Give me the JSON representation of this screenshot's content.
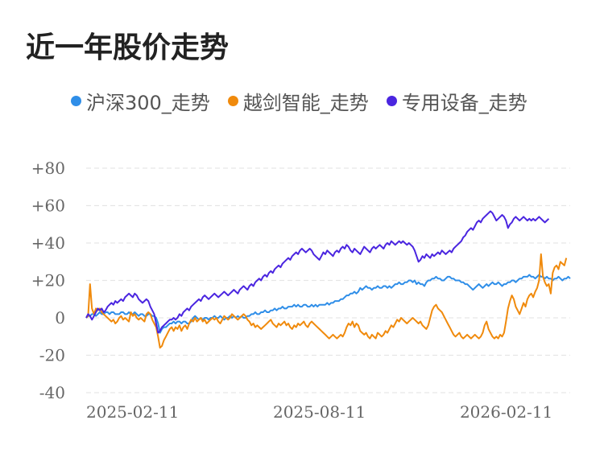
{
  "title": "近一年股价走势",
  "chart_data": {
    "type": "line",
    "ylim": [
      -40,
      80
    ],
    "y_ticks": [
      "+80",
      "+60",
      "+40",
      "+20",
      "0",
      "-20",
      "-40"
    ],
    "y_tick_values": [
      80,
      60,
      40,
      20,
      0,
      -20,
      -40
    ],
    "x_tick_labels": [
      "2025-02-11",
      "2025-08-11",
      "2026-02-11"
    ],
    "x_tick_index": [
      0,
      120,
      240
    ],
    "grid": true,
    "legend_position": "top",
    "series": [
      {
        "name": "沪深300_走势",
        "color": "#2f8ee8",
        "values": [
          0,
          1,
          1,
          2,
          2,
          1,
          2,
          3,
          2,
          2,
          3,
          3,
          2,
          3,
          3,
          2,
          2,
          2,
          3,
          3,
          2,
          2,
          3,
          2,
          2,
          3,
          2,
          1,
          2,
          2,
          1,
          1,
          2,
          2,
          1,
          1,
          0,
          -3,
          -8,
          -6,
          -5,
          -5,
          -4,
          -3,
          -3,
          -2,
          -3,
          -2,
          -2,
          -3,
          -2,
          -2,
          -3,
          -3,
          -2,
          0,
          1,
          0,
          -1,
          0,
          -1,
          0,
          0,
          -1,
          0,
          0,
          1,
          0,
          0,
          1,
          0,
          -1,
          0,
          0,
          1,
          0,
          1,
          0,
          1,
          0,
          1,
          0,
          0,
          1,
          1,
          2,
          2,
          3,
          2,
          2,
          3,
          3,
          4,
          3,
          3,
          4,
          4,
          5,
          4,
          5,
          5,
          6,
          5,
          5,
          6,
          6,
          6,
          7,
          6,
          7,
          6,
          6,
          7,
          7,
          6,
          6,
          7,
          6,
          7,
          6,
          7,
          7,
          7,
          7,
          8,
          7,
          8,
          8,
          9,
          9,
          9,
          10,
          10,
          11,
          12,
          12,
          13,
          13,
          14,
          13,
          14,
          16,
          15,
          16,
          17,
          16,
          16,
          15,
          16,
          16,
          17,
          16,
          16,
          17,
          17,
          16,
          17,
          16,
          17,
          18,
          18,
          19,
          18,
          18,
          19,
          19,
          20,
          20,
          19,
          20,
          18,
          19,
          18,
          18,
          17,
          19,
          20,
          20,
          21,
          21,
          22,
          21,
          21,
          20,
          20,
          21,
          22,
          22,
          21,
          21,
          20,
          20,
          20,
          19,
          19,
          18,
          18,
          17,
          16,
          15,
          16,
          17,
          18,
          17,
          16,
          17,
          18,
          17,
          18,
          19,
          18,
          18,
          19,
          18,
          17,
          18,
          18,
          19,
          19,
          20,
          20,
          19,
          20,
          21,
          21,
          22,
          22,
          22,
          23,
          22,
          22,
          21,
          22,
          23,
          22,
          22,
          21,
          22,
          21,
          21,
          20,
          21,
          21,
          22,
          21,
          20,
          21,
          21,
          22,
          21
        ]
      },
      {
        "name": "越剑智能_走势",
        "color": "#f08a0c",
        "values": [
          0,
          1,
          18,
          5,
          2,
          5,
          4,
          5,
          3,
          2,
          1,
          0,
          -1,
          -2,
          -1,
          -3,
          -2,
          0,
          1,
          -1,
          0,
          -1,
          -2,
          3,
          1,
          2,
          0,
          -1,
          0,
          -1,
          -2,
          2,
          3,
          2,
          -1,
          -3,
          -5,
          -10,
          -16,
          -15,
          -12,
          -10,
          -8,
          -6,
          -5,
          -7,
          -5,
          -6,
          -4,
          -7,
          -5,
          -4,
          -6,
          -3,
          -1,
          -2,
          0,
          -2,
          -1,
          0,
          -2,
          -1,
          -3,
          -2,
          -1,
          0,
          -1,
          0,
          -2,
          -3,
          -1,
          1,
          0,
          -1,
          0,
          2,
          1,
          0,
          -1,
          0,
          1,
          2,
          1,
          -1,
          -2,
          -4,
          -3,
          -5,
          -4,
          -5,
          -6,
          -5,
          -4,
          -3,
          -2,
          -1,
          -3,
          -4,
          -5,
          -3,
          -4,
          -3,
          -2,
          -4,
          -3,
          -5,
          -6,
          -4,
          -5,
          -3,
          -4,
          -3,
          -2,
          -4,
          -5,
          -3,
          -2,
          -3,
          -4,
          -5,
          -6,
          -7,
          -8,
          -9,
          -10,
          -11,
          -10,
          -9,
          -10,
          -11,
          -10,
          -9,
          -10,
          -8,
          -5,
          -3,
          -4,
          -2,
          -5,
          -3,
          -4,
          -7,
          -8,
          -9,
          -8,
          -10,
          -11,
          -9,
          -10,
          -11,
          -8,
          -9,
          -10,
          -9,
          -7,
          -8,
          -6,
          -4,
          -5,
          -3,
          -1,
          -2,
          0,
          -1,
          -2,
          -3,
          -2,
          -1,
          0,
          -1,
          -2,
          -3,
          -2,
          -4,
          -5,
          -6,
          -4,
          0,
          4,
          6,
          7,
          5,
          4,
          3,
          1,
          -1,
          -3,
          -5,
          -7,
          -9,
          -10,
          -9,
          -8,
          -10,
          -11,
          -10,
          -9,
          -10,
          -11,
          -10,
          -9,
          -10,
          -11,
          -10,
          -8,
          -4,
          -2,
          -6,
          -8,
          -10,
          -11,
          -10,
          -11,
          -9,
          -10,
          -8,
          -2,
          5,
          9,
          12,
          10,
          6,
          4,
          2,
          5,
          8,
          6,
          10,
          12,
          13,
          11,
          14,
          16,
          20,
          34,
          22,
          19,
          17,
          18,
          13,
          24,
          27,
          28,
          26,
          30,
          29,
          28,
          32
        ]
      },
      {
        "name": "专用设备_走势",
        "color": "#4a25e0",
        "values": [
          0,
          2,
          1,
          -1,
          1,
          3,
          5,
          4,
          5,
          3,
          4,
          6,
          7,
          8,
          7,
          9,
          8,
          9,
          10,
          9,
          11,
          12,
          13,
          12,
          11,
          13,
          12,
          10,
          9,
          8,
          9,
          10,
          9,
          6,
          4,
          2,
          -3,
          -8,
          -7,
          -5,
          -4,
          -3,
          -2,
          -1,
          -1,
          0,
          -1,
          0,
          2,
          1,
          3,
          4,
          5,
          4,
          6,
          7,
          8,
          9,
          10,
          9,
          11,
          12,
          11,
          10,
          11,
          12,
          13,
          12,
          11,
          12,
          13,
          14,
          13,
          12,
          13,
          14,
          15,
          14,
          13,
          15,
          16,
          17,
          16,
          15,
          17,
          18,
          17,
          19,
          20,
          21,
          20,
          22,
          23,
          22,
          24,
          25,
          24,
          26,
          27,
          28,
          27,
          29,
          30,
          31,
          32,
          31,
          33,
          34,
          35,
          34,
          36,
          37,
          36,
          35,
          36,
          37,
          36,
          34,
          33,
          32,
          31,
          33,
          35,
          34,
          36,
          35,
          34,
          33,
          35,
          36,
          35,
          37,
          38,
          37,
          39,
          38,
          36,
          35,
          37,
          36,
          35,
          34,
          36,
          38,
          37,
          36,
          35,
          37,
          38,
          37,
          38,
          39,
          38,
          37,
          39,
          40,
          39,
          41,
          40,
          39,
          40,
          41,
          40,
          41,
          40,
          39,
          40,
          39,
          38,
          36,
          33,
          30,
          31,
          33,
          32,
          34,
          33,
          32,
          34,
          33,
          34,
          35,
          34,
          36,
          35,
          34,
          35,
          36,
          35,
          37,
          38,
          39,
          40,
          41,
          43,
          44,
          46,
          47,
          48,
          47,
          49,
          51,
          52,
          51,
          53,
          54,
          55,
          56,
          57,
          56,
          54,
          52,
          53,
          54,
          55,
          54,
          52,
          48,
          50,
          51,
          53,
          54,
          53,
          52,
          53,
          54,
          53,
          52,
          53,
          52,
          53,
          52,
          53,
          54,
          53,
          52,
          51,
          52,
          53
        ]
      }
    ]
  }
}
